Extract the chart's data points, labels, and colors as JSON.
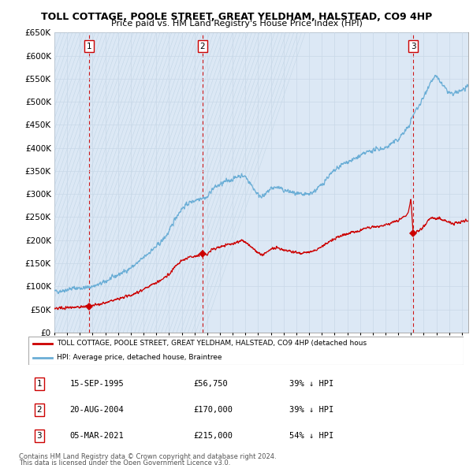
{
  "title": "TOLL COTTAGE, POOLE STREET, GREAT YELDHAM, HALSTEAD, CO9 4HP",
  "subtitle": "Price paid vs. HM Land Registry's House Price Index (HPI)",
  "legend_line1": "TOLL COTTAGE, POOLE STREET, GREAT YELDHAM, HALSTEAD, CO9 4HP (detached hous",
  "legend_line2": "HPI: Average price, detached house, Braintree",
  "footer1": "Contains HM Land Registry data © Crown copyright and database right 2024.",
  "footer2": "This data is licensed under the Open Government Licence v3.0.",
  "transactions": [
    {
      "num": 1,
      "date": "15-SEP-1995",
      "price": "£56,750",
      "relation": "39% ↓ HPI",
      "year": 1995.71,
      "price_val": 56750
    },
    {
      "num": 2,
      "date": "20-AUG-2004",
      "price": "£170,000",
      "relation": "39% ↓ HPI",
      "year": 2004.63,
      "price_val": 170000
    },
    {
      "num": 3,
      "date": "05-MAR-2021",
      "price": "£215,000",
      "relation": "54% ↓ HPI",
      "year": 2021.17,
      "price_val": 215000
    }
  ],
  "red_color": "#cc0000",
  "blue_color": "#6baed6",
  "grid_color": "#c8d8e8",
  "bg_color": "#dce8f0",
  "transaction_color": "#cc0000",
  "ylim": [
    0,
    650000
  ],
  "xlim_start": 1993.0,
  "xlim_end": 2025.5,
  "yticks": [
    0,
    50000,
    100000,
    150000,
    200000,
    250000,
    300000,
    350000,
    400000,
    450000,
    500000,
    550000,
    600000,
    650000
  ]
}
